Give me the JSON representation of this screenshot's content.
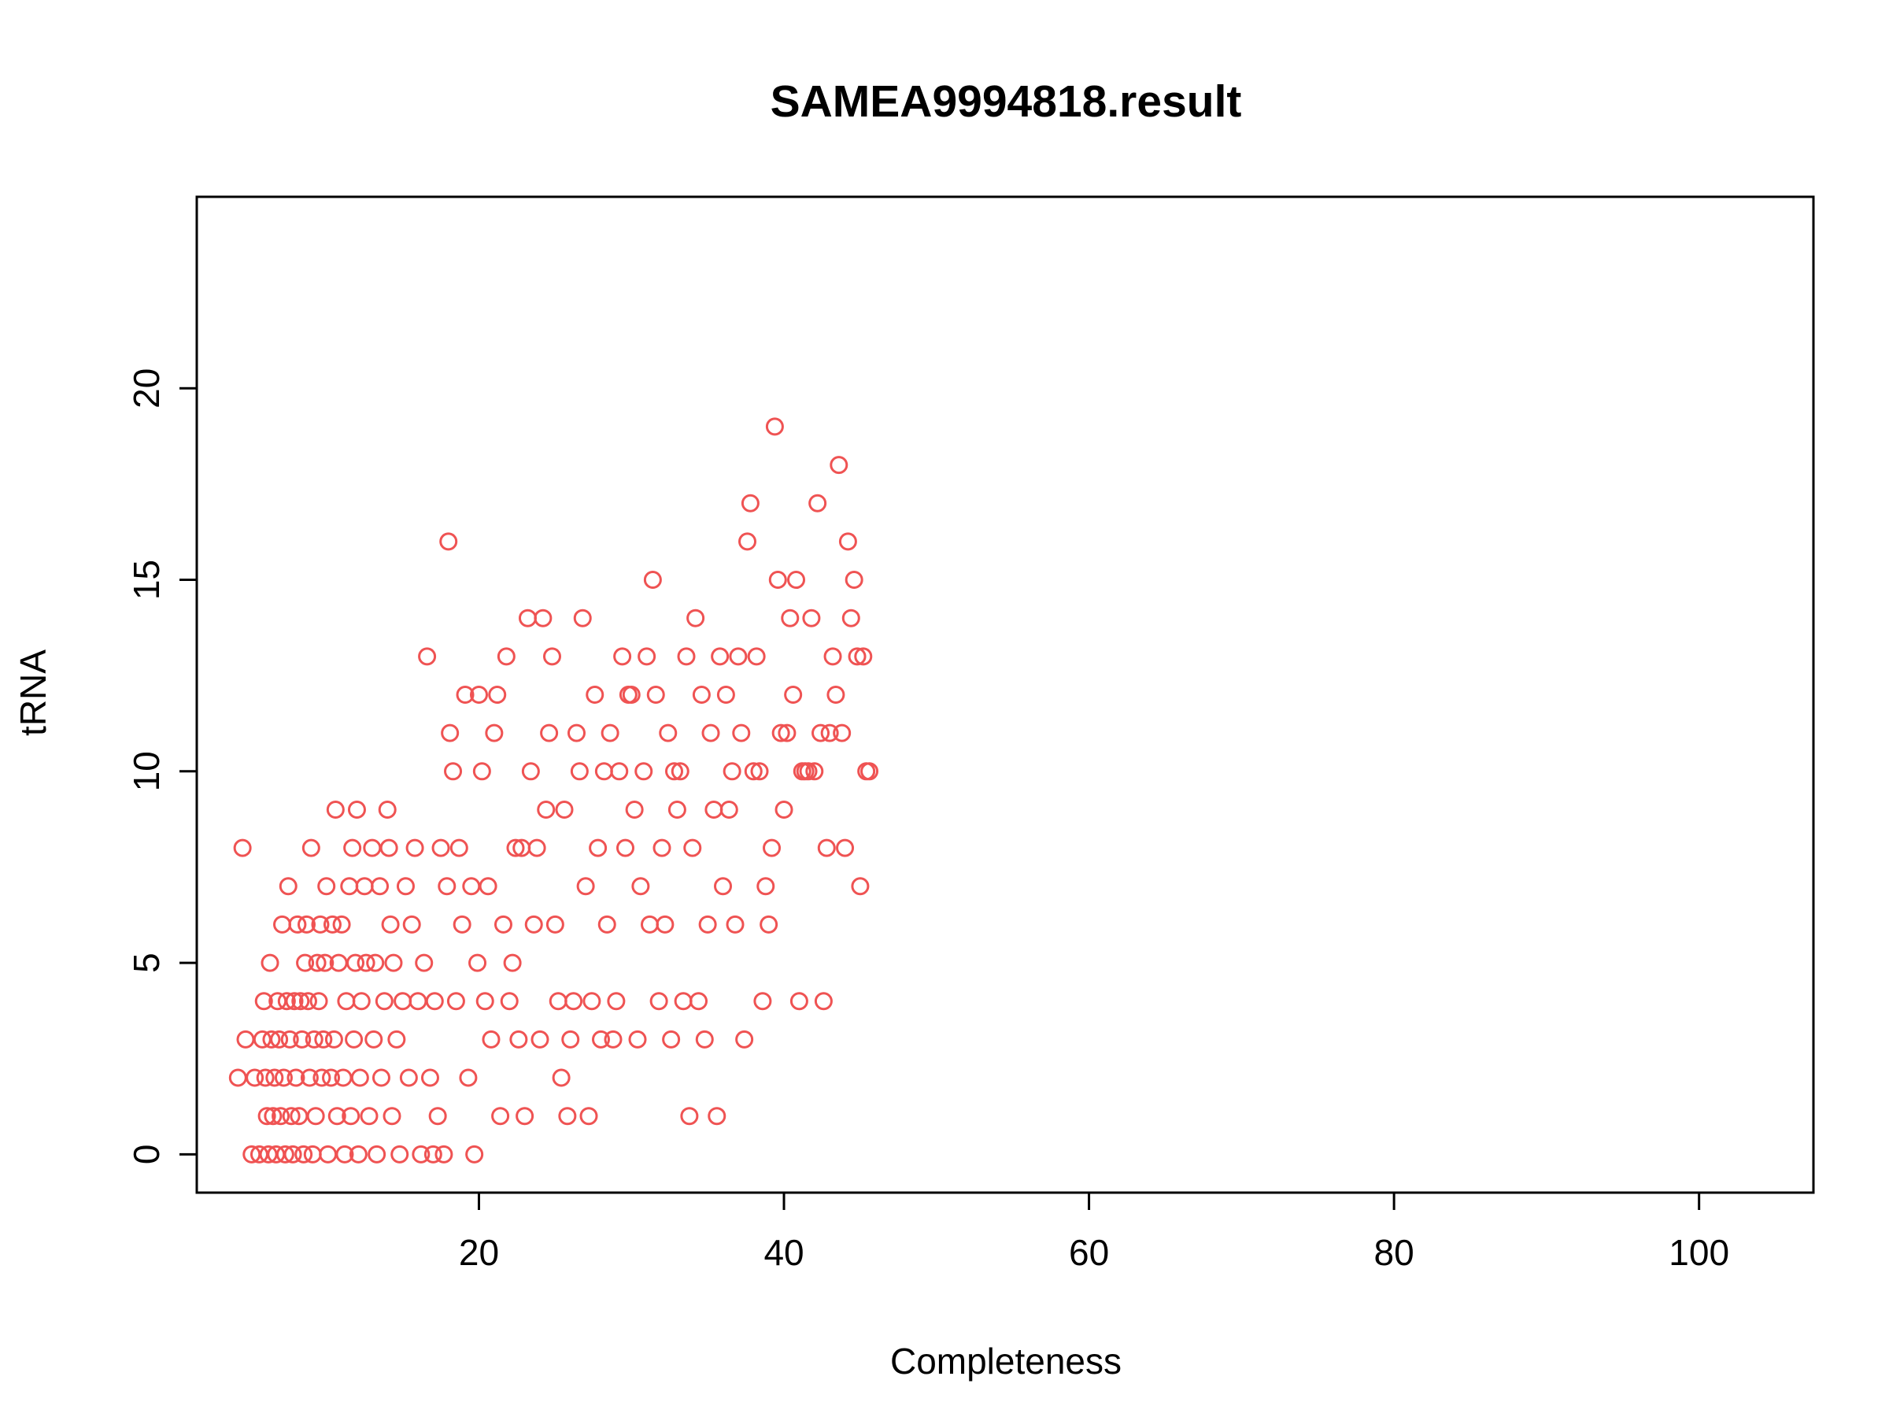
{
  "chart_data": {
    "type": "scatter",
    "title": "SAMEA9994818.result",
    "xlabel": "Completeness",
    "ylabel": "tRNA",
    "xlim": [
      1.5,
      107.5
    ],
    "ylim": [
      -1,
      25
    ],
    "x_ticks": [
      20,
      40,
      60,
      80,
      100
    ],
    "y_ticks": [
      0,
      5,
      10,
      15,
      20
    ],
    "grid": false,
    "marker": "open-circle",
    "color": "#ef5353",
    "series": [
      {
        "points": [
          [
            4.5,
            8
          ],
          [
            4.2,
            2
          ],
          [
            4.7,
            3
          ],
          [
            5.1,
            0
          ],
          [
            5.3,
            2
          ],
          [
            5.6,
            0
          ],
          [
            5.8,
            3
          ],
          [
            5.9,
            4
          ],
          [
            6.0,
            2
          ],
          [
            6.1,
            1
          ],
          [
            6.2,
            0
          ],
          [
            6.3,
            5
          ],
          [
            6.4,
            3
          ],
          [
            6.5,
            1
          ],
          [
            6.6,
            2
          ],
          [
            6.7,
            0
          ],
          [
            6.8,
            4
          ],
          [
            6.9,
            3
          ],
          [
            7.0,
            1
          ],
          [
            7.1,
            6
          ],
          [
            7.2,
            2
          ],
          [
            7.3,
            0
          ],
          [
            7.4,
            4
          ],
          [
            7.5,
            7
          ],
          [
            7.6,
            3
          ],
          [
            7.7,
            1
          ],
          [
            7.8,
            0
          ],
          [
            7.9,
            4
          ],
          [
            8.0,
            2
          ],
          [
            8.1,
            6
          ],
          [
            8.2,
            1
          ],
          [
            8.3,
            4
          ],
          [
            8.4,
            3
          ],
          [
            8.5,
            0
          ],
          [
            8.6,
            5
          ],
          [
            8.7,
            6
          ],
          [
            8.8,
            4
          ],
          [
            8.9,
            2
          ],
          [
            9.0,
            8
          ],
          [
            9.1,
            0
          ],
          [
            9.2,
            3
          ],
          [
            9.3,
            1
          ],
          [
            9.4,
            5
          ],
          [
            9.5,
            4
          ],
          [
            9.6,
            6
          ],
          [
            9.7,
            2
          ],
          [
            9.8,
            3
          ],
          [
            9.9,
            5
          ],
          [
            10.0,
            7
          ],
          [
            10.1,
            0
          ],
          [
            10.3,
            2
          ],
          [
            10.4,
            6
          ],
          [
            10.5,
            3
          ],
          [
            10.6,
            9
          ],
          [
            10.7,
            1
          ],
          [
            10.8,
            5
          ],
          [
            11.0,
            6
          ],
          [
            11.1,
            2
          ],
          [
            11.2,
            0
          ],
          [
            11.3,
            4
          ],
          [
            11.5,
            7
          ],
          [
            11.6,
            1
          ],
          [
            11.7,
            8
          ],
          [
            11.8,
            3
          ],
          [
            11.9,
            5
          ],
          [
            12.0,
            9
          ],
          [
            12.1,
            0
          ],
          [
            12.2,
            2
          ],
          [
            12.3,
            4
          ],
          [
            12.5,
            7
          ],
          [
            12.6,
            5
          ],
          [
            12.8,
            1
          ],
          [
            13.0,
            8
          ],
          [
            13.1,
            3
          ],
          [
            13.2,
            5
          ],
          [
            13.3,
            0
          ],
          [
            13.5,
            7
          ],
          [
            13.6,
            2
          ],
          [
            13.8,
            4
          ],
          [
            14.0,
            9
          ],
          [
            14.1,
            8
          ],
          [
            14.2,
            6
          ],
          [
            14.3,
            1
          ],
          [
            14.4,
            5
          ],
          [
            14.6,
            3
          ],
          [
            14.8,
            0
          ],
          [
            15.0,
            4
          ],
          [
            15.2,
            7
          ],
          [
            15.4,
            2
          ],
          [
            15.6,
            6
          ],
          [
            15.8,
            8
          ],
          [
            16.0,
            4
          ],
          [
            16.2,
            0
          ],
          [
            16.4,
            5
          ],
          [
            16.6,
            13
          ],
          [
            16.8,
            2
          ],
          [
            17.0,
            0
          ],
          [
            17.1,
            4
          ],
          [
            17.3,
            1
          ],
          [
            17.5,
            8
          ],
          [
            17.7,
            0
          ],
          [
            17.9,
            7
          ],
          [
            18.0,
            16
          ],
          [
            18.1,
            11
          ],
          [
            18.3,
            10
          ],
          [
            18.5,
            4
          ],
          [
            18.7,
            8
          ],
          [
            18.9,
            6
          ],
          [
            19.1,
            12
          ],
          [
            19.3,
            2
          ],
          [
            19.5,
            7
          ],
          [
            19.7,
            0
          ],
          [
            19.9,
            5
          ],
          [
            20.0,
            12
          ],
          [
            20.2,
            10
          ],
          [
            20.4,
            4
          ],
          [
            20.6,
            7
          ],
          [
            20.8,
            3
          ],
          [
            21.0,
            11
          ],
          [
            21.2,
            12
          ],
          [
            21.4,
            1
          ],
          [
            21.6,
            6
          ],
          [
            21.8,
            13
          ],
          [
            22.0,
            4
          ],
          [
            22.2,
            5
          ],
          [
            22.4,
            8
          ],
          [
            22.6,
            3
          ],
          [
            22.8,
            8
          ],
          [
            23.0,
            1
          ],
          [
            23.2,
            14
          ],
          [
            23.4,
            10
          ],
          [
            23.6,
            6
          ],
          [
            23.8,
            8
          ],
          [
            24.0,
            3
          ],
          [
            24.2,
            14
          ],
          [
            24.4,
            9
          ],
          [
            24.6,
            11
          ],
          [
            24.8,
            13
          ],
          [
            25.0,
            6
          ],
          [
            25.2,
            4
          ],
          [
            25.4,
            2
          ],
          [
            25.6,
            9
          ],
          [
            25.8,
            1
          ],
          [
            26.0,
            3
          ],
          [
            26.2,
            4
          ],
          [
            26.4,
            11
          ],
          [
            26.6,
            10
          ],
          [
            26.8,
            14
          ],
          [
            27.0,
            7
          ],
          [
            27.2,
            1
          ],
          [
            27.4,
            4
          ],
          [
            27.6,
            12
          ],
          [
            27.8,
            8
          ],
          [
            28.0,
            3
          ],
          [
            28.2,
            10
          ],
          [
            28.4,
            6
          ],
          [
            28.6,
            11
          ],
          [
            28.8,
            3
          ],
          [
            29.0,
            4
          ],
          [
            29.2,
            10
          ],
          [
            29.4,
            13
          ],
          [
            29.6,
            8
          ],
          [
            29.8,
            12
          ],
          [
            30.0,
            12
          ],
          [
            30.2,
            9
          ],
          [
            30.4,
            3
          ],
          [
            30.6,
            7
          ],
          [
            30.8,
            10
          ],
          [
            31.0,
            13
          ],
          [
            31.2,
            6
          ],
          [
            31.4,
            15
          ],
          [
            31.6,
            12
          ],
          [
            31.8,
            4
          ],
          [
            32.0,
            8
          ],
          [
            32.2,
            6
          ],
          [
            32.4,
            11
          ],
          [
            32.6,
            3
          ],
          [
            32.8,
            10
          ],
          [
            33.0,
            9
          ],
          [
            33.2,
            10
          ],
          [
            33.4,
            4
          ],
          [
            33.6,
            13
          ],
          [
            33.8,
            1
          ],
          [
            34.0,
            8
          ],
          [
            34.2,
            14
          ],
          [
            34.4,
            4
          ],
          [
            34.6,
            12
          ],
          [
            34.8,
            3
          ],
          [
            35.0,
            6
          ],
          [
            35.2,
            11
          ],
          [
            35.4,
            9
          ],
          [
            35.6,
            1
          ],
          [
            35.8,
            13
          ],
          [
            36.0,
            7
          ],
          [
            36.2,
            12
          ],
          [
            36.4,
            9
          ],
          [
            36.6,
            10
          ],
          [
            36.8,
            6
          ],
          [
            37.0,
            13
          ],
          [
            37.2,
            11
          ],
          [
            37.4,
            3
          ],
          [
            37.6,
            16
          ],
          [
            37.8,
            17
          ],
          [
            38.0,
            10
          ],
          [
            38.2,
            13
          ],
          [
            38.4,
            10
          ],
          [
            38.6,
            4
          ],
          [
            38.8,
            7
          ],
          [
            39.0,
            6
          ],
          [
            39.2,
            8
          ],
          [
            39.4,
            19
          ],
          [
            39.6,
            15
          ],
          [
            39.8,
            11
          ],
          [
            40.0,
            9
          ],
          [
            40.2,
            11
          ],
          [
            40.4,
            14
          ],
          [
            40.6,
            12
          ],
          [
            40.8,
            15
          ],
          [
            41.0,
            4
          ],
          [
            41.2,
            10
          ],
          [
            41.4,
            10
          ],
          [
            41.6,
            10
          ],
          [
            41.8,
            14
          ],
          [
            42.0,
            10
          ],
          [
            42.2,
            17
          ],
          [
            42.4,
            11
          ],
          [
            42.6,
            4
          ],
          [
            42.8,
            8
          ],
          [
            43.0,
            11
          ],
          [
            43.2,
            13
          ],
          [
            43.4,
            12
          ],
          [
            43.6,
            18
          ],
          [
            43.8,
            11
          ],
          [
            44.0,
            8
          ],
          [
            44.2,
            16
          ],
          [
            44.4,
            14
          ],
          [
            44.6,
            15
          ],
          [
            44.8,
            13
          ],
          [
            45.0,
            7
          ],
          [
            45.2,
            13
          ],
          [
            45.4,
            10
          ],
          [
            45.6,
            10
          ]
        ]
      }
    ]
  }
}
